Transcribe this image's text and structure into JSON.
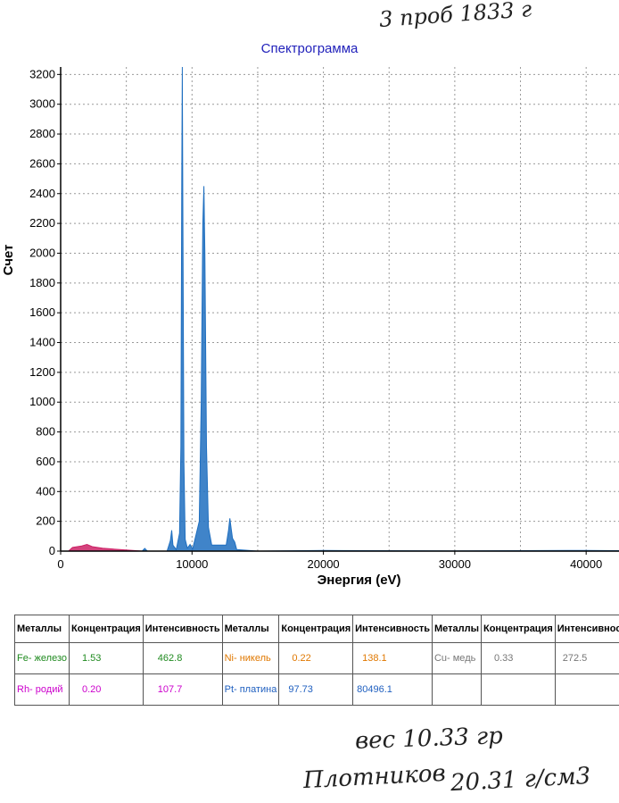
{
  "handwriting": {
    "top": "3 проб 1833 г",
    "weight": "вес 10.33 гр",
    "signature": "Плотников",
    "density": "20.31 г/см3"
  },
  "chart_data": {
    "type": "area",
    "title": "Спектрограмма",
    "xlabel": "Энергия (eV)",
    "ylabel": "Счет",
    "xlim": [
      0,
      42500
    ],
    "ylim": [
      0,
      3250
    ],
    "xticks": [
      0,
      10000,
      20000,
      30000,
      40000
    ],
    "yticks": [
      0,
      200,
      400,
      600,
      800,
      1000,
      1200,
      1400,
      1600,
      1800,
      2000,
      2200,
      2400,
      2600,
      2800,
      3000,
      3200
    ],
    "grid": true,
    "series": [
      {
        "color": "#1f6fc0",
        "points": [
          [
            6200,
            0
          ],
          [
            6400,
            18
          ],
          [
            6600,
            0
          ],
          [
            8100,
            0
          ],
          [
            8350,
            70
          ],
          [
            8450,
            140
          ],
          [
            8550,
            40
          ],
          [
            8800,
            10
          ],
          [
            9050,
            120
          ],
          [
            9150,
            700
          ],
          [
            9220,
            2500
          ],
          [
            9260,
            3250
          ],
          [
            9300,
            2300
          ],
          [
            9380,
            600
          ],
          [
            9480,
            80
          ],
          [
            9650,
            20
          ],
          [
            9850,
            45
          ],
          [
            10050,
            15
          ],
          [
            10550,
            200
          ],
          [
            10700,
            1000
          ],
          [
            10820,
            2200
          ],
          [
            10900,
            2450
          ],
          [
            10980,
            2000
          ],
          [
            11100,
            700
          ],
          [
            11250,
            160
          ],
          [
            11500,
            40
          ],
          [
            12600,
            40
          ],
          [
            12780,
            140
          ],
          [
            12880,
            220
          ],
          [
            12980,
            150
          ],
          [
            13080,
            85
          ],
          [
            13250,
            60
          ],
          [
            13400,
            10
          ],
          [
            15000,
            0
          ],
          [
            20000,
            4
          ],
          [
            30000,
            2
          ],
          [
            40000,
            5
          ],
          [
            42500,
            3
          ]
        ]
      },
      {
        "color": "#cc2266",
        "points": [
          [
            600,
            0
          ],
          [
            900,
            25
          ],
          [
            1600,
            35
          ],
          [
            2000,
            45
          ],
          [
            2400,
            30
          ],
          [
            3200,
            20
          ],
          [
            4500,
            10
          ],
          [
            5500,
            4
          ],
          [
            6200,
            0
          ]
        ]
      }
    ]
  },
  "table": {
    "headers": [
      "Металлы",
      "Концентрация",
      "Интенсивность",
      "Металлы",
      "Концентрация",
      "Интенсивность",
      "Металлы",
      "Концентрация",
      "Интенсивность"
    ],
    "rows": [
      [
        {
          "text": "Fe-  железо",
          "color": "#1f8a1f"
        },
        {
          "text": "1.53",
          "color": "#1f8a1f"
        },
        {
          "text": "462.8",
          "color": "#1f8a1f"
        },
        {
          "text": "Ni-  никель",
          "color": "#e07800"
        },
        {
          "text": "0.22",
          "color": "#e07800"
        },
        {
          "text": "138.1",
          "color": "#e07800"
        },
        {
          "text": "Cu-  медь",
          "color": "#777777"
        },
        {
          "text": "0.33",
          "color": "#777777"
        },
        {
          "text": "272.5",
          "color": "#777777"
        }
      ],
      [
        {
          "text": "Rh-  родий",
          "color": "#cc00cc"
        },
        {
          "text": "0.20",
          "color": "#cc00cc"
        },
        {
          "text": "107.7",
          "color": "#cc00cc"
        },
        {
          "text": "Pt-  платина",
          "color": "#2060c0"
        },
        {
          "text": "97.73",
          "color": "#2060c0"
        },
        {
          "text": "80496.1",
          "color": "#2060c0"
        },
        {
          "text": "",
          "color": "#000000"
        },
        {
          "text": "",
          "color": "#000000"
        },
        {
          "text": "",
          "color": "#000000"
        }
      ]
    ]
  }
}
